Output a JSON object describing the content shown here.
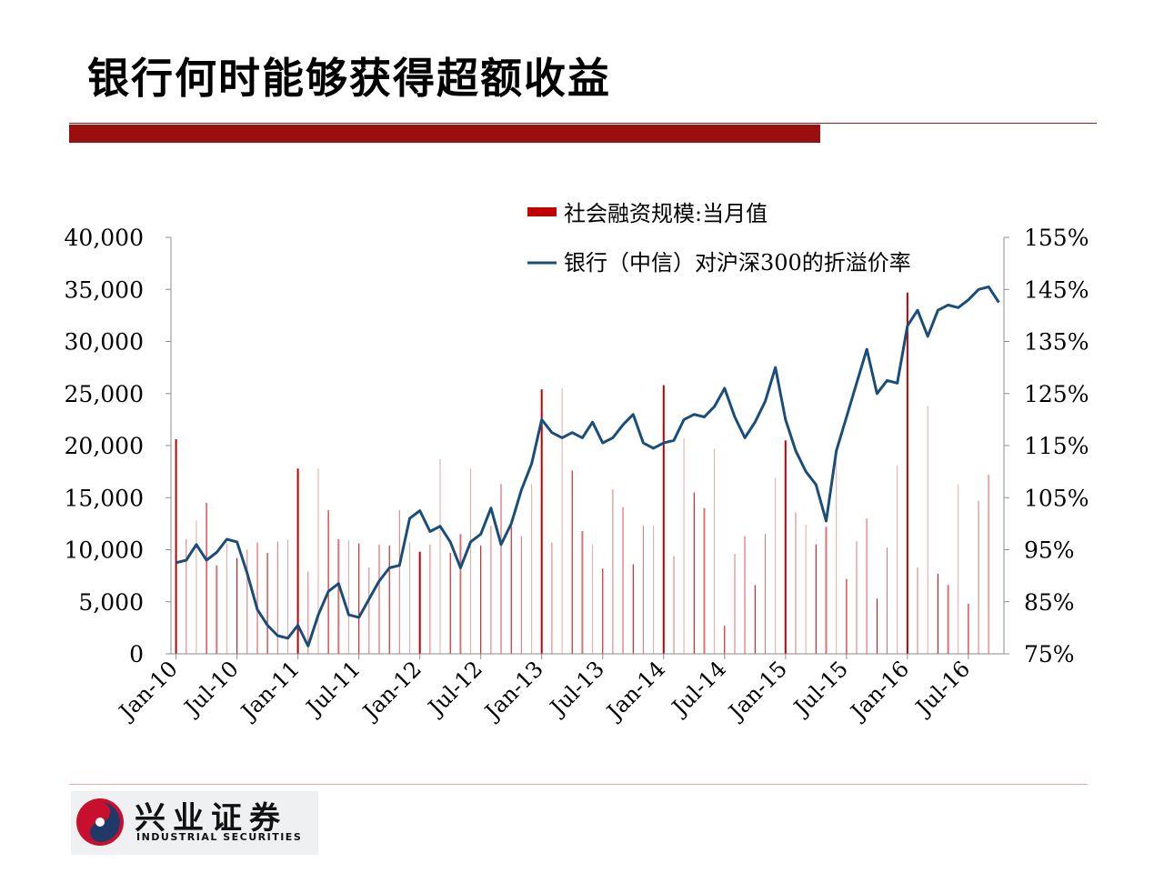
{
  "page": {
    "title": "银行何时能够获得超额收益"
  },
  "logo": {
    "name_cn": "兴业证券",
    "name_en": "INDUSTRIAL SECURITIES",
    "colors": {
      "red": "#c8102e",
      "navy": "#1f3a68"
    }
  },
  "chart_data": {
    "type": "bar+line",
    "title": "",
    "legend": [
      {
        "label": "社会融资规模:当月值",
        "kind": "bar",
        "color": "#c00000"
      },
      {
        "label": "银行（中信）对沪深300的折溢价率",
        "kind": "line",
        "color": "#1a4e7a"
      }
    ],
    "legend_placement": "top-right",
    "grid": false,
    "x_start": "2010-01",
    "x_ticks": [
      "Jan-10",
      "Jul-10",
      "Jan-11",
      "Jul-11",
      "Jan-12",
      "Jul-12",
      "Jan-13",
      "Jul-13",
      "Jan-14",
      "Jul-14",
      "Jan-15",
      "Jul-15",
      "Jan-16",
      "Jul-16"
    ],
    "y_left": {
      "ylim": [
        0,
        40000
      ],
      "ticks": [
        "40,000",
        "35,000",
        "30,000",
        "25,000",
        "20,000",
        "15,000",
        "10,000",
        "5,000",
        "0"
      ]
    },
    "y_right": {
      "ylim": [
        75,
        155
      ],
      "ticks": [
        "155%",
        "145%",
        "135%",
        "125%",
        "115%",
        "105%",
        "95%",
        "85%",
        "75%"
      ]
    },
    "series": [
      {
        "name": "社会融资规模:当月值",
        "axis": "left",
        "values": [
          20600,
          11000,
          12800,
          14500,
          8500,
          10700,
          9200,
          10000,
          10700,
          9700,
          10800,
          11000,
          17800,
          7900,
          17800,
          13800,
          11000,
          10900,
          10600,
          8300,
          10500,
          10400,
          13800,
          10700,
          9800,
          10500,
          18700,
          9700,
          11500,
          17800,
          10400,
          12300,
          16300,
          12900,
          11300,
          16300,
          25400,
          10700,
          25500,
          17600,
          11800,
          10500,
          8200,
          15800,
          14100,
          8600,
          12300,
          12300,
          25800,
          9400,
          20700,
          15500,
          14000,
          19700,
          2700,
          9600,
          11300,
          6600,
          11500,
          16900,
          20500,
          13600,
          12400,
          10500,
          12200,
          18500,
          7200,
          10800,
          13000,
          5300,
          10200,
          18100,
          34700,
          8300,
          23800,
          7700,
          6600,
          16300,
          4800,
          14700,
          17200
        ]
      },
      {
        "name": "银行（中信）对沪深300的折溢价率",
        "axis": "right",
        "values": [
          92.5,
          93,
          96,
          93,
          94.5,
          97,
          96.5,
          90.5,
          83.5,
          80.5,
          78.5,
          78,
          80.5,
          76.5,
          82.5,
          87,
          88.5,
          82.5,
          82,
          85.5,
          89,
          91.5,
          92,
          101,
          102.5,
          98.5,
          99.5,
          96.5,
          91.5,
          96.5,
          98,
          103,
          96,
          100,
          106.5,
          111.5,
          120,
          117.5,
          116.5,
          117.5,
          116.5,
          119.5,
          115.5,
          116.5,
          119,
          121,
          115.5,
          114.5,
          115.5,
          116,
          120,
          121,
          120.5,
          122.5,
          126,
          120.5,
          116.5,
          119.5,
          123.5,
          130,
          120,
          114,
          110,
          107.5,
          100.5,
          114,
          120.5,
          127,
          133.5,
          125,
          127.5,
          127,
          138,
          141,
          136,
          141,
          142,
          141.5,
          143,
          145,
          145.5,
          142.5
        ]
      }
    ]
  }
}
